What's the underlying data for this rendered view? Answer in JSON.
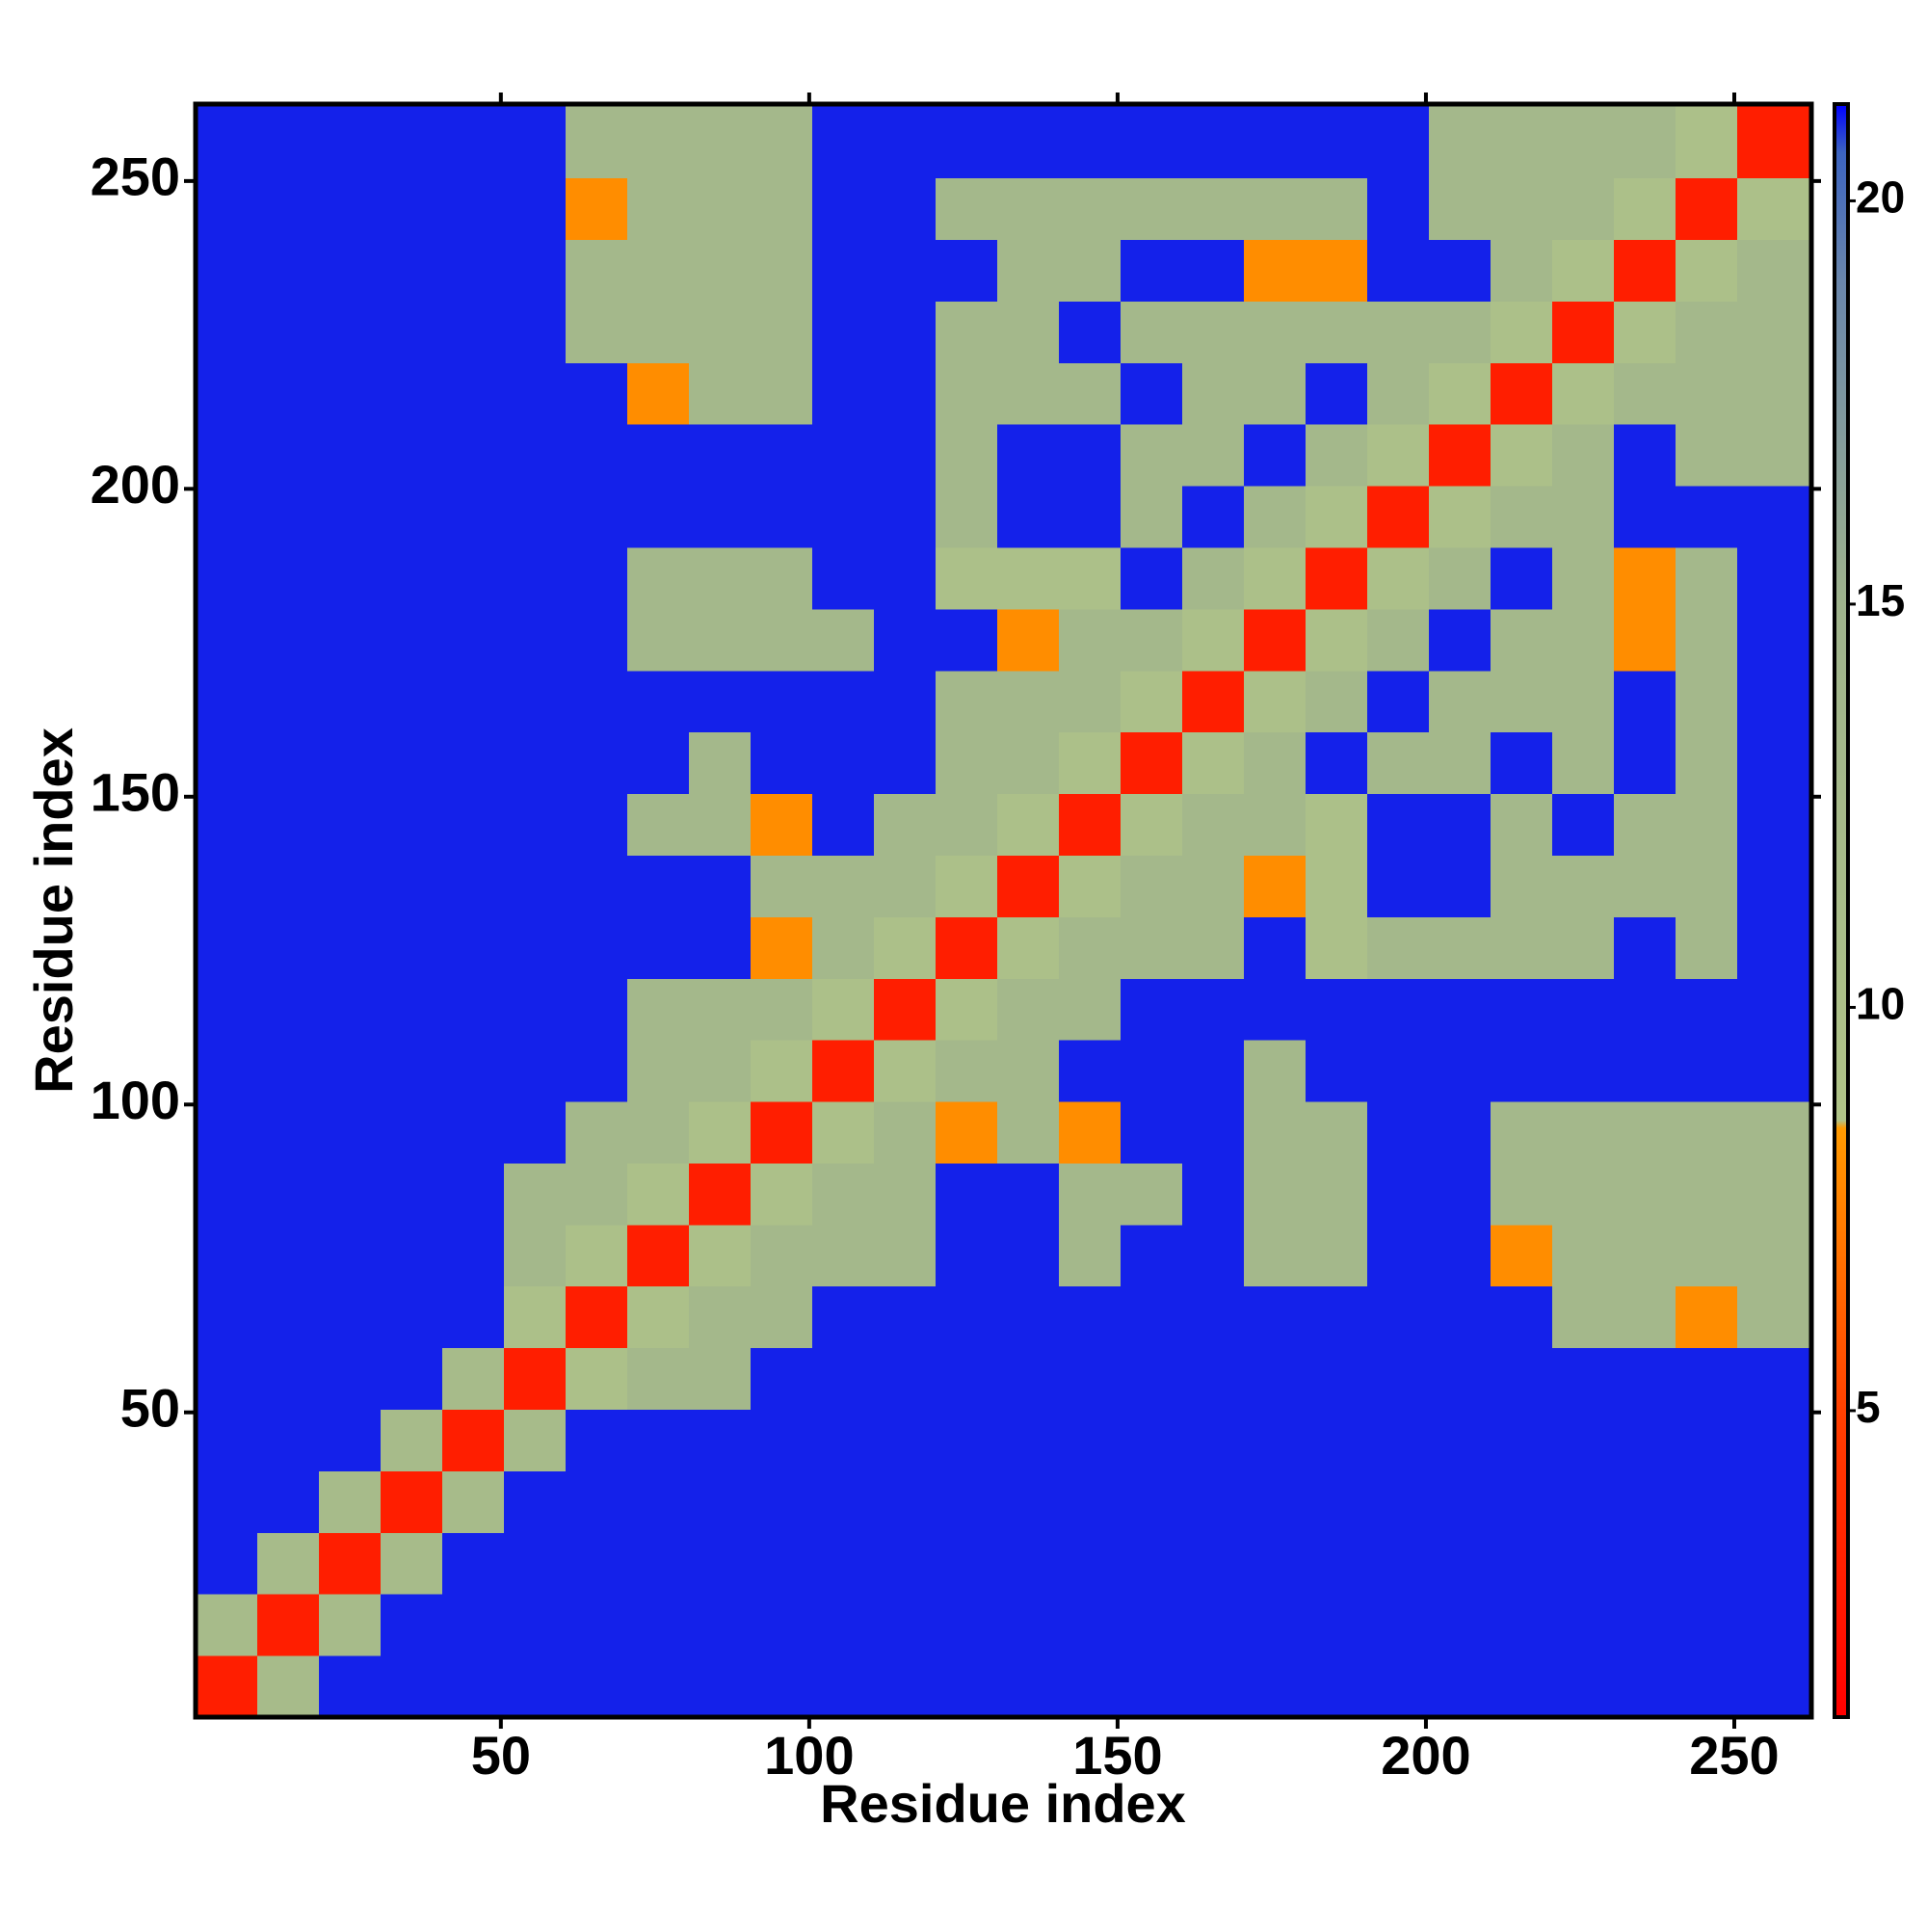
{
  "chart_data": {
    "type": "heatmap",
    "x_label": "Residue index",
    "y_label": "Residue index",
    "x": [
      5.5,
      15.5,
      25.5,
      35.5,
      45.5,
      55.5,
      65.5,
      75.5,
      85.5,
      95.5,
      105.5,
      115.5,
      125.5,
      135.5,
      145.5,
      155.5,
      165.5,
      175.5,
      185.5,
      195.5,
      205.5,
      215.5,
      225.5,
      235.5,
      245.5,
      255.5
    ],
    "y": [
      5.5,
      15.5,
      25.5,
      35.5,
      45.5,
      55.5,
      65.5,
      75.5,
      85.5,
      95.5,
      105.5,
      115.5,
      125.5,
      135.5,
      145.5,
      155.5,
      165.5,
      175.5,
      185.5,
      195.5,
      205.5,
      215.5,
      225.5,
      235.5,
      245.5,
      255.5
    ],
    "xlim": [
      0.5,
      262.5
    ],
    "ylim": [
      0.5,
      262.5
    ],
    "xticks": [
      50,
      100,
      150,
      200,
      250
    ],
    "yticks": [
      50,
      100,
      150,
      200,
      250
    ],
    "zlim": [
      1.2,
      21.2
    ],
    "zticks": [
      5,
      10,
      15,
      20
    ],
    "colorscale": [
      {
        "value": 1.2,
        "color": "#ff0000"
      },
      {
        "value": 5,
        "color": "#ff4000"
      },
      {
        "value": 8.5,
        "color": "#ff9a00"
      },
      {
        "value": 8.6,
        "color": "#b0c488"
      },
      {
        "value": 15,
        "color": "#9fb38c"
      },
      {
        "value": 19,
        "color": "#6a86ab"
      },
      {
        "value": 20.6,
        "color": "#3c64c0"
      },
      {
        "value": 21.2,
        "color": "#0000ff"
      }
    ],
    "values": [
      [
        3,
        12,
        21,
        21,
        21,
        21,
        21,
        21,
        21,
        21,
        21,
        21,
        21,
        21,
        21,
        21,
        21,
        21,
        21,
        21,
        21,
        21,
        21,
        21,
        21,
        21
      ],
      [
        12,
        3,
        12,
        21,
        21,
        21,
        21,
        21,
        21,
        21,
        21,
        21,
        21,
        21,
        21,
        21,
        21,
        21,
        21,
        21,
        21,
        21,
        21,
        21,
        21,
        21
      ],
      [
        21,
        12,
        3,
        12,
        21,
        21,
        21,
        21,
        21,
        21,
        21,
        21,
        21,
        21,
        21,
        21,
        21,
        21,
        21,
        21,
        21,
        21,
        21,
        21,
        21,
        21
      ],
      [
        21,
        21,
        12,
        3,
        12,
        21,
        21,
        21,
        21,
        21,
        21,
        21,
        21,
        21,
        21,
        21,
        21,
        21,
        21,
        21,
        21,
        21,
        21,
        21,
        21,
        21
      ],
      [
        21,
        21,
        21,
        12,
        3,
        12,
        21,
        21,
        21,
        21,
        21,
        21,
        21,
        21,
        21,
        21,
        21,
        21,
        21,
        21,
        21,
        21,
        21,
        21,
        21,
        21
      ],
      [
        21,
        21,
        21,
        21,
        12,
        3,
        10,
        13,
        13,
        21,
        21,
        21,
        21,
        21,
        21,
        21,
        21,
        21,
        21,
        21,
        21,
        21,
        21,
        21,
        21,
        21
      ],
      [
        21,
        21,
        21,
        21,
        21,
        10,
        3,
        10,
        13,
        13,
        21,
        21,
        21,
        21,
        21,
        21,
        21,
        21,
        21,
        21,
        21,
        21,
        13,
        13,
        8,
        13
      ],
      [
        21,
        21,
        21,
        21,
        21,
        13,
        10,
        3,
        10,
        13,
        13,
        13,
        21,
        21,
        13,
        21,
        21,
        13,
        13,
        21,
        21,
        8,
        13,
        13,
        13,
        13
      ],
      [
        21,
        21,
        21,
        21,
        21,
        13,
        13,
        10,
        3,
        10,
        13,
        13,
        21,
        21,
        13,
        13,
        21,
        13,
        13,
        21,
        21,
        13,
        13,
        13,
        13,
        13
      ],
      [
        21,
        21,
        21,
        21,
        21,
        21,
        13,
        13,
        10,
        3,
        10,
        13,
        8,
        13,
        8,
        21,
        21,
        13,
        13,
        21,
        21,
        13,
        13,
        13,
        13,
        13
      ],
      [
        21,
        21,
        21,
        21,
        21,
        21,
        21,
        13,
        13,
        10,
        3,
        10,
        13,
        13,
        21,
        21,
        21,
        13,
        21,
        21,
        21,
        21,
        21,
        21,
        21,
        21
      ],
      [
        21,
        21,
        21,
        21,
        21,
        21,
        21,
        13,
        13,
        13,
        10,
        3,
        10,
        13,
        13,
        21,
        21,
        21,
        21,
        21,
        21,
        21,
        21,
        21,
        21,
        21
      ],
      [
        21,
        21,
        21,
        21,
        21,
        21,
        21,
        21,
        21,
        8,
        13,
        10,
        3,
        10,
        13,
        13,
        13,
        21,
        10,
        13,
        13,
        13,
        13,
        21,
        13,
        21
      ],
      [
        21,
        21,
        21,
        21,
        21,
        21,
        21,
        21,
        21,
        13,
        13,
        13,
        10,
        3,
        10,
        13,
        13,
        8,
        10,
        21,
        21,
        13,
        13,
        13,
        13,
        21
      ],
      [
        21,
        21,
        21,
        21,
        21,
        21,
        21,
        13,
        13,
        8,
        21,
        13,
        13,
        10,
        3,
        10,
        13,
        13,
        10,
        21,
        21,
        13,
        21,
        13,
        13,
        21
      ],
      [
        21,
        21,
        21,
        21,
        21,
        21,
        21,
        21,
        13,
        21,
        21,
        21,
        13,
        13,
        10,
        3,
        10,
        13,
        21,
        13,
        13,
        21,
        13,
        21,
        13,
        21
      ],
      [
        21,
        21,
        21,
        21,
        21,
        21,
        21,
        21,
        21,
        21,
        21,
        21,
        13,
        13,
        13,
        10,
        3,
        10,
        13,
        21,
        13,
        13,
        13,
        21,
        13,
        21
      ],
      [
        21,
        21,
        21,
        21,
        21,
        21,
        21,
        13,
        13,
        13,
        13,
        21,
        21,
        8,
        13,
        13,
        10,
        3,
        10,
        13,
        21,
        13,
        13,
        8,
        13,
        21
      ],
      [
        21,
        21,
        21,
        21,
        21,
        21,
        21,
        13,
        13,
        13,
        21,
        21,
        10,
        10,
        10,
        21,
        13,
        10,
        3,
        10,
        13,
        21,
        13,
        8,
        13,
        21
      ],
      [
        21,
        21,
        21,
        21,
        21,
        21,
        21,
        21,
        21,
        21,
        21,
        21,
        13,
        21,
        21,
        13,
        21,
        13,
        10,
        3,
        10,
        13,
        13,
        21,
        21,
        21
      ],
      [
        21,
        21,
        21,
        21,
        21,
        21,
        21,
        21,
        21,
        21,
        21,
        21,
        13,
        21,
        21,
        13,
        13,
        21,
        13,
        10,
        3,
        10,
        13,
        21,
        13,
        13
      ],
      [
        21,
        21,
        21,
        21,
        21,
        21,
        21,
        8,
        13,
        13,
        21,
        21,
        13,
        13,
        13,
        21,
        13,
        13,
        21,
        13,
        10,
        3,
        10,
        13,
        13,
        13
      ],
      [
        21,
        21,
        21,
        21,
        21,
        21,
        13,
        13,
        13,
        13,
        21,
        21,
        13,
        13,
        21,
        13,
        13,
        13,
        13,
        13,
        13,
        10,
        3,
        10,
        13,
        13
      ],
      [
        21,
        21,
        21,
        21,
        21,
        21,
        13,
        13,
        13,
        13,
        21,
        21,
        21,
        13,
        13,
        21,
        21,
        8,
        8,
        21,
        21,
        13,
        10,
        3,
        10,
        13
      ],
      [
        21,
        21,
        21,
        21,
        21,
        21,
        8,
        13,
        13,
        13,
        21,
        21,
        13,
        13,
        13,
        13,
        13,
        13,
        13,
        21,
        13,
        13,
        13,
        10,
        3,
        10
      ],
      [
        21,
        21,
        21,
        21,
        21,
        21,
        13,
        13,
        13,
        13,
        21,
        21,
        21,
        21,
        21,
        21,
        21,
        21,
        21,
        21,
        13,
        13,
        13,
        13,
        10,
        3
      ]
    ]
  }
}
